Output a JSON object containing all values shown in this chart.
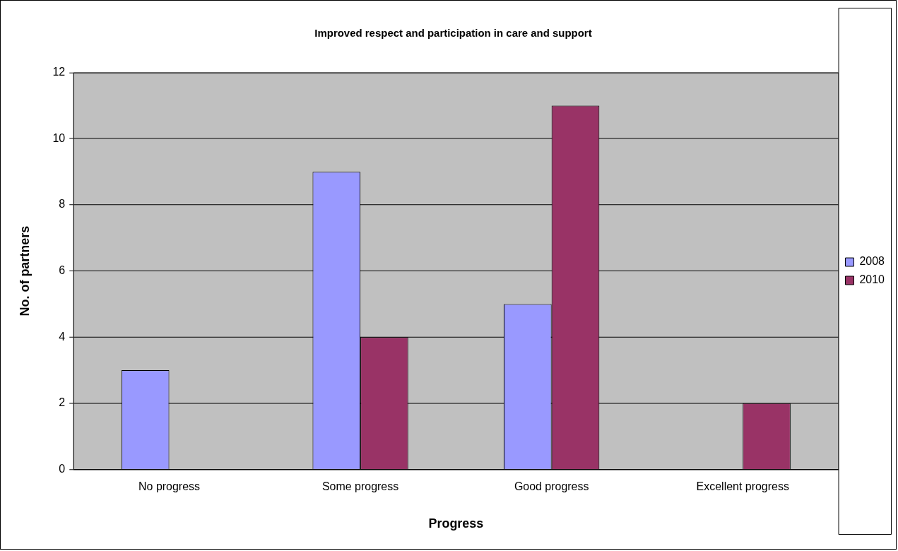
{
  "chart_data": {
    "type": "bar",
    "title": "Improved respect and participation in care and support",
    "xlabel": "Progress",
    "ylabel": "No. of partners",
    "categories": [
      "No progress",
      "Some progress",
      "Good progress",
      "Excellent progress"
    ],
    "series": [
      {
        "name": "2008",
        "color": "#9999ff",
        "values": [
          3,
          9,
          5,
          0
        ]
      },
      {
        "name": "2010",
        "color": "#993366",
        "values": [
          0,
          4,
          11,
          2
        ]
      }
    ],
    "ylim": [
      0,
      12
    ],
    "yticks": [
      0,
      2,
      4,
      6,
      8,
      10,
      12
    ],
    "grid": "y",
    "legend": "right"
  }
}
